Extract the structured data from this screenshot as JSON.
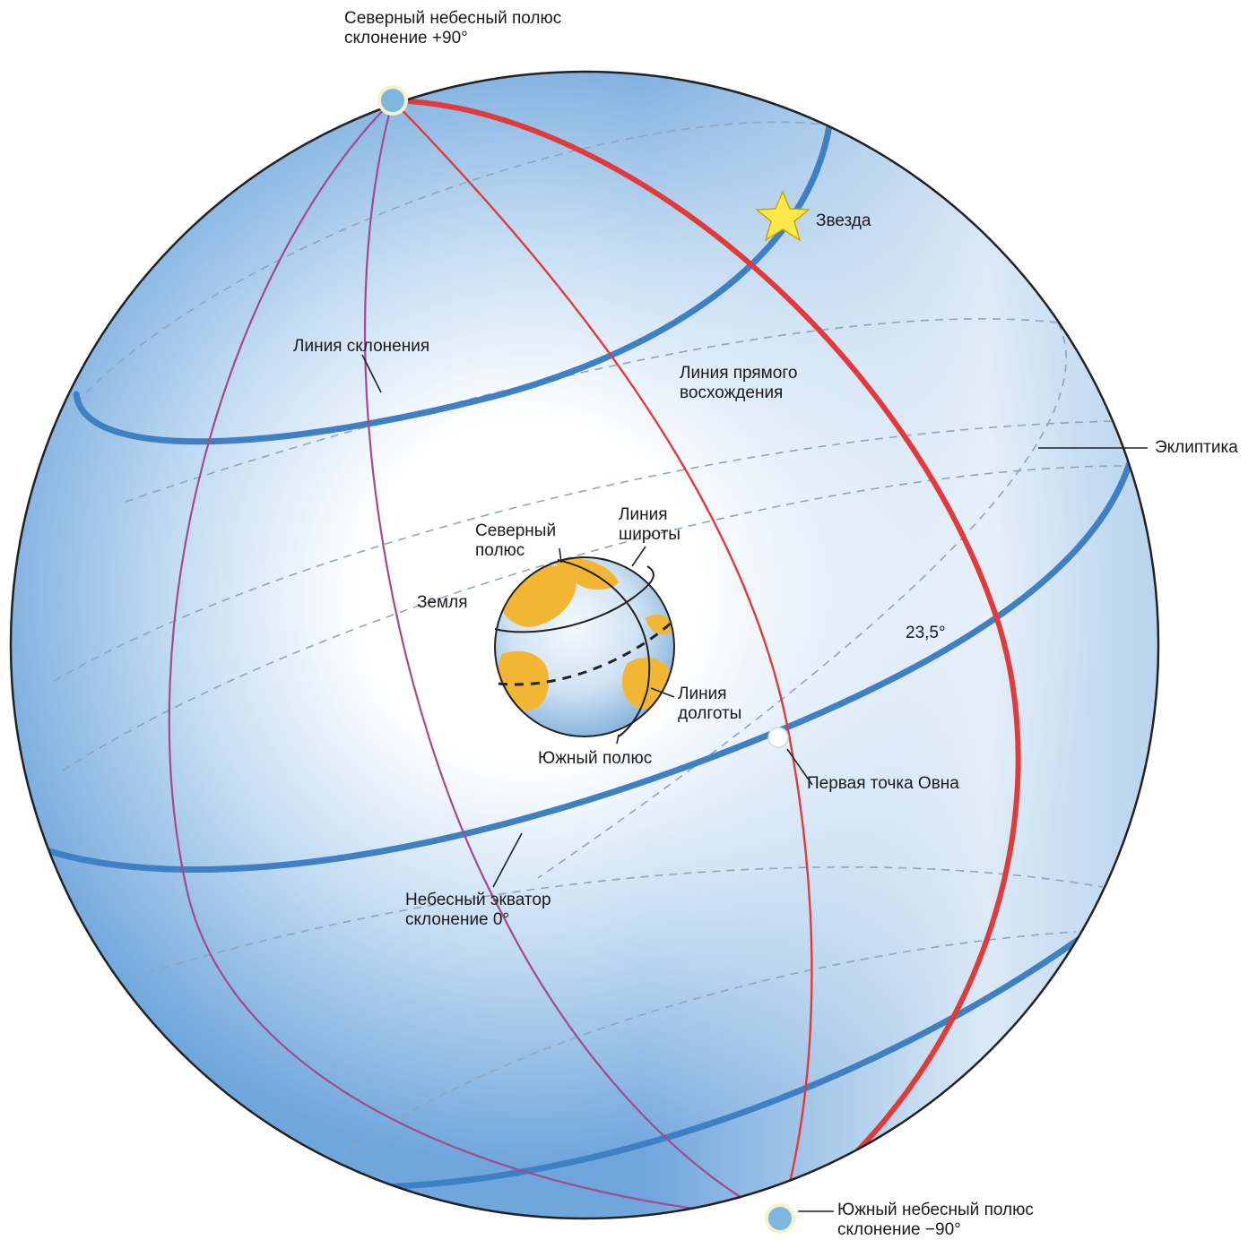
{
  "labels": {
    "north_celestial_pole": {
      "line1": "Северный небесный полюс",
      "line2": "склонение +90°"
    },
    "star": "Звезда",
    "declination_line": "Линия склонения",
    "right_ascension_line": {
      "line1": "Линия прямого",
      "line2": "восхождения"
    },
    "ecliptic": "Эклиптика",
    "north_pole": {
      "line1": "Северный",
      "line2": "полюс"
    },
    "latitude_line": {
      "line1": "Линия",
      "line2": "широты"
    },
    "earth": "Земля",
    "tilt_angle": "23,5°",
    "longitude_line": {
      "line1": "Линия",
      "line2": "долготы"
    },
    "south_pole": "Южный полюс",
    "first_point_of_aries": "Первая точка Овна",
    "celestial_equator": {
      "line1": "Небесный экватор",
      "line2": "склонение 0°"
    },
    "south_celestial_pole": {
      "line1": "Южный небесный полюс",
      "line2": "склонение −90°"
    }
  },
  "colors": {
    "sphere_blue": "#6fa6dc",
    "sphere_light": "#ffffff",
    "declination_blue": "#3f7fc4",
    "meridian_red": "#e03a3a",
    "meridian_purple": "#a34a8f",
    "earth_ocean": "#bcd6ee",
    "earth_land": "#f2b632",
    "star_yellow": "#ffe94a",
    "pole_fill": "#7fb6e0",
    "outline": "#222222"
  }
}
